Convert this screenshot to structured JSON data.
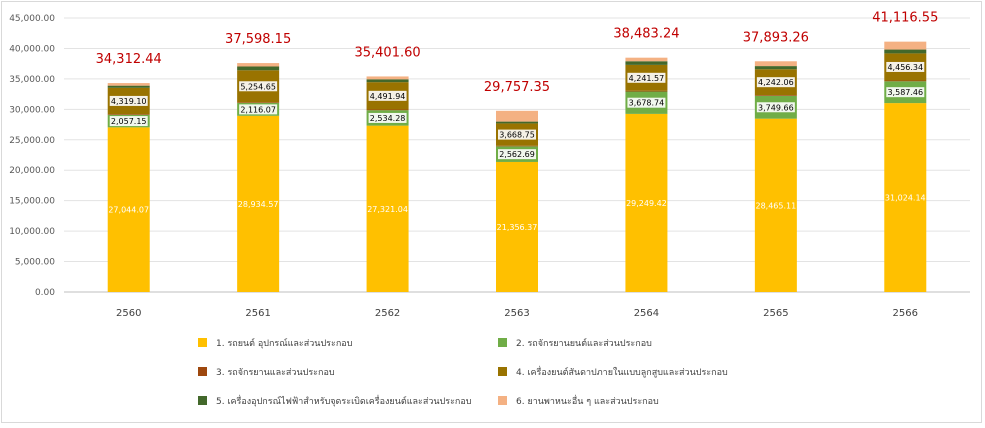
{
  "chart_data": {
    "type": "bar",
    "stacked": true,
    "categories": [
      "2560",
      "2561",
      "2562",
      "2563",
      "2564",
      "2565",
      "2566"
    ],
    "ylim": [
      0,
      45000
    ],
    "yticks": [
      "0.00",
      "5,000.00",
      "10,000.00",
      "15,000.00",
      "20,000.00",
      "25,000.00",
      "30,000.00",
      "35,000.00",
      "40,000.00",
      "45,000.00"
    ],
    "ytick_values": [
      0,
      5000,
      10000,
      15000,
      20000,
      25000,
      30000,
      35000,
      40000,
      45000
    ],
    "grid": true,
    "legend_position": "bottom",
    "series": [
      {
        "name": "1. รถยนต์ อุปกรณ์และส่วนประกอบ",
        "color": "#ffc000",
        "values": [
          27044.07,
          28934.57,
          27321.04,
          21356.37,
          29249.42,
          28465.11,
          31024.14
        ],
        "labels": [
          "27,044.07",
          "28,934.57",
          "27,321.04",
          "21,356.37",
          "29,249.42",
          "28,465.11",
          "31,024.14"
        ]
      },
      {
        "name": "2. รถจักรยานยนต์และส่วนประกอบ",
        "color": "#70ad47",
        "values": [
          2057.15,
          2116.07,
          2534.28,
          2562.69,
          3678.74,
          3749.66,
          3587.46
        ],
        "labels": [
          "2,057.15",
          "2,116.07",
          "2,534.28",
          "2,562.69",
          "3,678.74",
          "3,749.66",
          "3,587.46"
        ]
      },
      {
        "name": "3. รถจักรยานและส่วนประกอบ",
        "color": "#9e480e",
        "values": [
          120,
          110,
          115,
          100,
          130,
          125,
          120
        ],
        "labels": []
      },
      {
        "name": "4. เครื่องยนต์สันดาปภายในแบบลูกสูบและส่วนประกอบ",
        "color": "#997300",
        "values": [
          4319.1,
          5254.65,
          4491.94,
          3668.75,
          4241.57,
          4242.06,
          4456.34
        ],
        "labels": [
          "4,319.10",
          "5,254.65",
          "4,491.94",
          "3,668.75",
          "4,241.57",
          "4,242.06",
          "4,456.34"
        ]
      },
      {
        "name": "5. เครื่องอุปกรณ์ไฟฟ้าสำหรับจุดระเบิดเครื่องยนต์และส่วนประกอบ",
        "color": "#43682b",
        "values": [
          350,
          620,
          470,
          300,
          600,
          520,
          630
        ],
        "labels": []
      },
      {
        "name": "6. ยานพาหนะอื่น ๆ และส่วนประกอบ",
        "color": "#f4b183",
        "values": [
          422.12,
          562.79,
          469.34,
          1769.54,
          583.07,
          790.77,
          1298.61
        ],
        "labels": []
      }
    ],
    "totals": [
      34312.44,
      37598.15,
      35401.6,
      29757.35,
      38483.24,
      37893.26,
      41116.55
    ],
    "total_labels": [
      "34,312.44",
      "37,598.15",
      "35,401.60",
      "29,757.35",
      "38,483.24",
      "37,893.26",
      "41,116.55"
    ]
  }
}
